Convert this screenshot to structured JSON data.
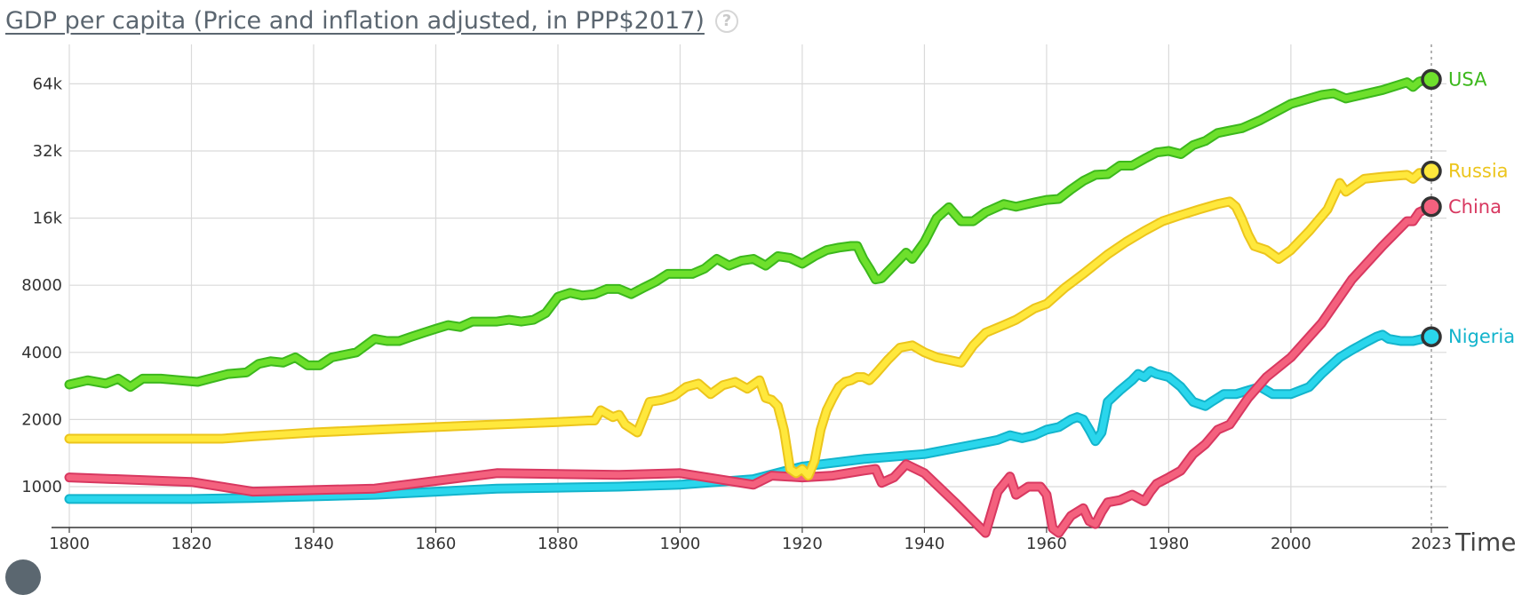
{
  "header": {
    "title": "GDP per capita (Price and inflation adjusted, in PPP$2017)",
    "help_icon": "question-circle-icon",
    "help_glyph": "?"
  },
  "chart_data": {
    "type": "line",
    "title": "GDP per capita (Price and inflation adjusted, in PPP$2017)",
    "xlabel": "Time",
    "ylabel": "",
    "xlim": [
      1800,
      2023
    ],
    "ylim": [
      700,
      80000
    ],
    "yscale": "log",
    "xticks": [
      "1800",
      "1820",
      "1840",
      "1860",
      "1880",
      "1900",
      "1920",
      "1940",
      "1960",
      "1980",
      "2000",
      "2023"
    ],
    "yticks": [
      {
        "value": 1000,
        "label": "1000"
      },
      {
        "value": 2000,
        "label": "2000"
      },
      {
        "value": 4000,
        "label": "4000"
      },
      {
        "value": 8000,
        "label": "8000"
      },
      {
        "value": 16000,
        "label": "16k"
      },
      {
        "value": 32000,
        "label": "32k"
      },
      {
        "value": 64000,
        "label": "64k"
      }
    ],
    "grid": true,
    "legend": "end-of-line labels",
    "series": [
      {
        "name": "USA",
        "color": "#6ee02c",
        "outline": "#3cb81c",
        "x": [
          1800,
          1803,
          1806,
          1808,
          1810,
          1812,
          1815,
          1818,
          1821,
          1823,
          1826,
          1829,
          1831,
          1833,
          1835,
          1837,
          1839,
          1841,
          1843,
          1845,
          1847,
          1850,
          1852,
          1854,
          1856,
          1858,
          1860,
          1862,
          1864,
          1866,
          1868,
          1870,
          1872,
          1874,
          1876,
          1878,
          1880,
          1882,
          1884,
          1886,
          1888,
          1890,
          1892,
          1894,
          1896,
          1898,
          1900,
          1902,
          1904,
          1906,
          1908,
          1910,
          1912,
          1914,
          1916,
          1918,
          1920,
          1922,
          1924,
          1926,
          1928,
          1929,
          1930,
          1931,
          1932,
          1933,
          1935,
          1937,
          1938,
          1940,
          1942,
          1944,
          1946,
          1948,
          1950,
          1953,
          1955,
          1958,
          1960,
          1962,
          1964,
          1966,
          1968,
          1970,
          1972,
          1974,
          1976,
          1978,
          1980,
          1982,
          1984,
          1986,
          1988,
          1990,
          1992,
          1995,
          2000,
          2005,
          2007,
          2009,
          2012,
          2015,
          2019,
          2020,
          2021,
          2022,
          2023
        ],
        "values": [
          2870,
          3000,
          2900,
          3050,
          2800,
          3050,
          3050,
          3000,
          2950,
          3050,
          3200,
          3250,
          3550,
          3650,
          3600,
          3800,
          3500,
          3500,
          3800,
          3900,
          4000,
          4600,
          4500,
          4500,
          4700,
          4900,
          5100,
          5300,
          5200,
          5500,
          5500,
          5500,
          5600,
          5500,
          5600,
          6000,
          7100,
          7400,
          7200,
          7300,
          7700,
          7700,
          7300,
          7800,
          8300,
          9000,
          9000,
          9000,
          9500,
          10500,
          9800,
          10300,
          10500,
          9800,
          10800,
          10600,
          10000,
          10800,
          11500,
          11800,
          12000,
          12000,
          10500,
          9500,
          8500,
          8600,
          9800,
          11200,
          10500,
          12500,
          16000,
          17900,
          15500,
          15500,
          17000,
          18500,
          18000,
          18800,
          19300,
          19500,
          21500,
          23500,
          25000,
          25200,
          27500,
          27500,
          29500,
          31500,
          32000,
          31000,
          34000,
          35500,
          38500,
          39500,
          40500,
          44000,
          52000,
          57000,
          58000,
          55000,
          57500,
          60000,
          65000,
          62000,
          65500,
          66500,
          67000
        ]
      },
      {
        "name": "Russia",
        "color": "#ffe83c",
        "outline": "#ecc51c",
        "x": [
          1800,
          1825,
          1830,
          1840,
          1850,
          1860,
          1870,
          1880,
          1885,
          1886,
          1887,
          1889,
          1890,
          1891,
          1893,
          1895,
          1897,
          1899,
          1901,
          1903,
          1905,
          1907,
          1909,
          1911,
          1913,
          1914,
          1915,
          1916,
          1917,
          1918,
          1919,
          1920,
          1921,
          1922,
          1923,
          1924,
          1925,
          1926,
          1927,
          1928,
          1929,
          1930,
          1931,
          1932,
          1934,
          1936,
          1938,
          1940,
          1942,
          1944,
          1946,
          1948,
          1950,
          1953,
          1955,
          1958,
          1960,
          1963,
          1966,
          1970,
          1973,
          1976,
          1979,
          1982,
          1985,
          1988,
          1990,
          1991,
          1992,
          1993,
          1994,
          1996,
          1998,
          2000,
          2003,
          2006,
          2008,
          2009,
          2012,
          2015,
          2019,
          2020,
          2021,
          2022,
          2023
        ],
        "values": [
          1640,
          1640,
          1680,
          1750,
          1800,
          1850,
          1900,
          1950,
          1980,
          1980,
          2200,
          2050,
          2100,
          1900,
          1750,
          2400,
          2450,
          2550,
          2800,
          2900,
          2600,
          2850,
          2950,
          2750,
          3000,
          2500,
          2450,
          2300,
          1800,
          1200,
          1150,
          1200,
          1120,
          1300,
          1800,
          2200,
          2500,
          2800,
          2950,
          3000,
          3100,
          3100,
          3000,
          3200,
          3700,
          4200,
          4300,
          4000,
          3800,
          3700,
          3600,
          4300,
          4900,
          5300,
          5600,
          6300,
          6600,
          7800,
          9000,
          11000,
          12500,
          14000,
          15500,
          16500,
          17500,
          18500,
          19000,
          18000,
          15800,
          13500,
          12000,
          11500,
          10500,
          11500,
          14000,
          17500,
          23000,
          21000,
          24000,
          24500,
          25000,
          24000,
          25500,
          25500,
          26000
        ]
      },
      {
        "name": "China",
        "color": "#f4617e",
        "outline": "#d83860",
        "x": [
          1800,
          1820,
          1830,
          1850,
          1870,
          1890,
          1900,
          1912,
          1915,
          1920,
          1925,
          1930,
          1932,
          1933,
          1935,
          1937,
          1940,
          1945,
          1950,
          1952,
          1954,
          1955,
          1957,
          1959,
          1960,
          1961,
          1962,
          1964,
          1966,
          1967,
          1968,
          1969,
          1970,
          1972,
          1974,
          1976,
          1977,
          1978,
          1980,
          1982,
          1984,
          1986,
          1988,
          1990,
          1993,
          1996,
          2000,
          2005,
          2010,
          2015,
          2019,
          2020,
          2021,
          2022,
          2023
        ],
        "values": [
          1100,
          1050,
          950,
          980,
          1150,
          1130,
          1150,
          1020,
          1120,
          1100,
          1120,
          1180,
          1200,
          1040,
          1100,
          1260,
          1150,
          850,
          620,
          950,
          1110,
          920,
          1000,
          1000,
          920,
          650,
          620,
          740,
          800,
          700,
          680,
          770,
          850,
          870,
          920,
          860,
          950,
          1030,
          1100,
          1180,
          1400,
          1550,
          1800,
          1900,
          2500,
          3100,
          3800,
          5400,
          8500,
          12000,
          15500,
          15500,
          17000,
          17500,
          18000
        ]
      },
      {
        "name": "Nigeria",
        "color": "#2ad6ec",
        "outline": "#13b4cc",
        "x": [
          1800,
          1820,
          1830,
          1850,
          1870,
          1890,
          1900,
          1912,
          1920,
          1930,
          1940,
          1950,
          1952,
          1954,
          1956,
          1958,
          1960,
          1962,
          1964,
          1965,
          1966,
          1967,
          1968,
          1969,
          1970,
          1972,
          1974,
          1975,
          1976,
          1977,
          1978,
          1980,
          1982,
          1984,
          1986,
          1987,
          1989,
          1991,
          1993,
          1995,
          1997,
          2000,
          2003,
          2005,
          2008,
          2010,
          2012,
          2014,
          2015,
          2016,
          2018,
          2020,
          2023
        ],
        "values": [
          880,
          880,
          890,
          920,
          980,
          1000,
          1020,
          1080,
          1230,
          1330,
          1400,
          1580,
          1620,
          1700,
          1650,
          1700,
          1800,
          1850,
          2000,
          2050,
          2000,
          1800,
          1600,
          1750,
          2400,
          2700,
          3000,
          3200,
          3100,
          3300,
          3200,
          3100,
          2800,
          2400,
          2300,
          2400,
          2600,
          2600,
          2700,
          2800,
          2600,
          2600,
          2800,
          3200,
          3800,
          4100,
          4400,
          4700,
          4800,
          4600,
          4500,
          4500,
          4700
        ]
      }
    ]
  }
}
